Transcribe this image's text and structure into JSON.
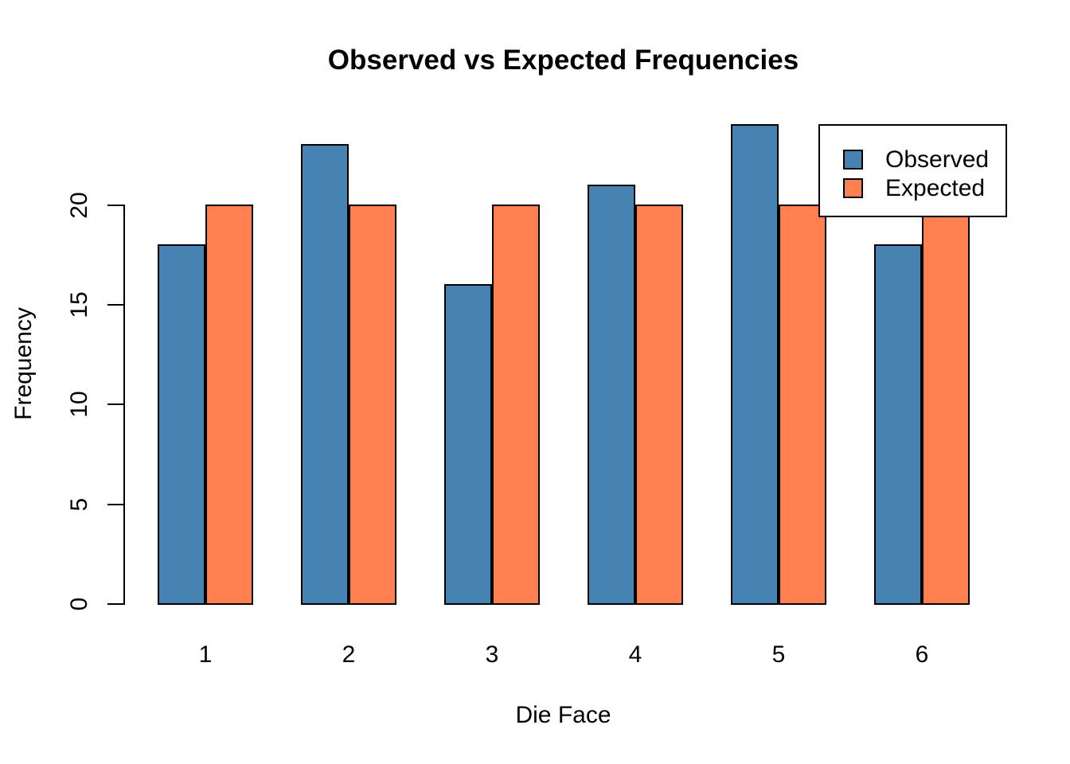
{
  "chart_data": {
    "type": "bar",
    "title": "Observed vs Expected Frequencies",
    "xlabel": "Die Face",
    "ylabel": "Frequency",
    "categories": [
      "1",
      "2",
      "3",
      "4",
      "5",
      "6"
    ],
    "series": [
      {
        "name": "Observed",
        "color": "#4682B4",
        "values": [
          18,
          23,
          16,
          21,
          24,
          18
        ]
      },
      {
        "name": "Expected",
        "color": "#FF7F50",
        "values": [
          20,
          20,
          20,
          20,
          20,
          20
        ]
      }
    ],
    "ylim": [
      0,
      24
    ],
    "yticks": [
      0,
      5,
      10,
      15,
      20
    ],
    "grid": false,
    "legend_position": "top-right",
    "bar_border_color": "#000000",
    "text_color": "#000000",
    "background_color": "#FFFFFF"
  }
}
